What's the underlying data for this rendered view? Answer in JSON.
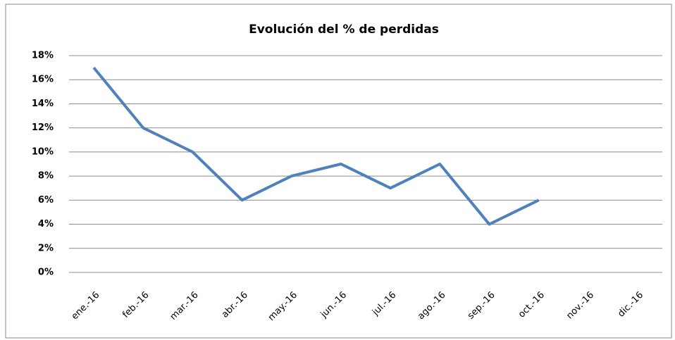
{
  "chart_data": {
    "type": "line",
    "title": "Evolución del % de perdidas",
    "categories": [
      "ene.-16",
      "feb.-16",
      "mar.-16",
      "abr.-16",
      "may.-16",
      "jun.-16",
      "jul.-16",
      "ago.-16",
      "sep.-16",
      "oct.-16",
      "nov.-16",
      "dic.-16"
    ],
    "series": [
      {
        "color": "#4f81bd",
        "values": [
          17,
          12,
          10,
          6,
          8,
          9,
          7,
          9,
          4,
          6,
          null,
          null
        ]
      }
    ],
    "ylim": [
      0,
      18
    ],
    "yticks": [
      {
        "value": 0,
        "label": "0%"
      },
      {
        "value": 2,
        "label": "2%"
      },
      {
        "value": 4,
        "label": "4%"
      },
      {
        "value": 6,
        "label": "6%"
      },
      {
        "value": 8,
        "label": "8%"
      },
      {
        "value": 10,
        "label": "10%"
      },
      {
        "value": 12,
        "label": "12%"
      },
      {
        "value": 14,
        "label": "14%"
      },
      {
        "value": 16,
        "label": "16%"
      },
      {
        "value": 18,
        "label": "18%"
      }
    ],
    "grid": true
  }
}
